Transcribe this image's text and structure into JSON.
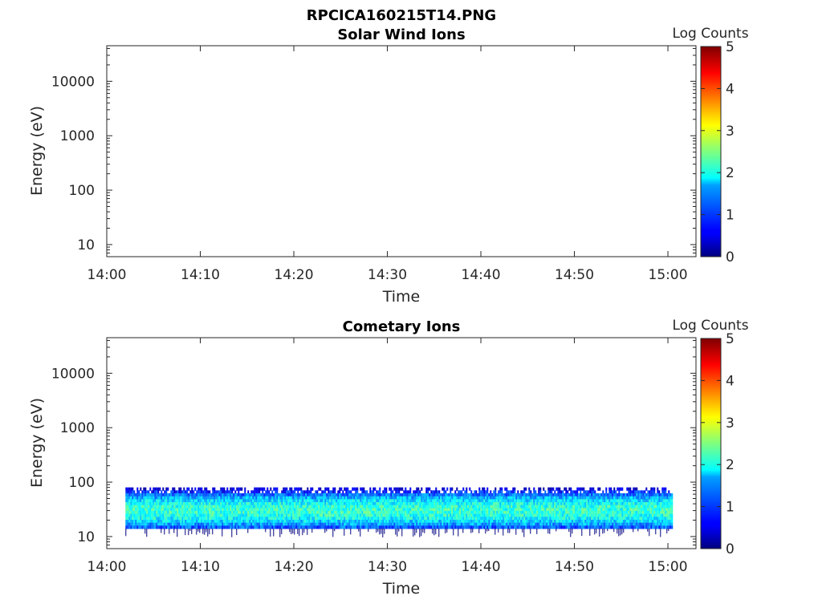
{
  "figure_title": "RPCICA160215T14.PNG",
  "chart_data": [
    {
      "type": "heatmap",
      "title": "Solar Wind Ions",
      "xlabel": "Time",
      "ylabel": "Energy (eV)",
      "x_range": [
        "14:00",
        "15:03"
      ],
      "x_ticks": [
        "14:00",
        "14:10",
        "14:20",
        "14:30",
        "14:40",
        "14:50",
        "15:00"
      ],
      "y_scale": "log",
      "y_range": [
        6,
        45000
      ],
      "y_ticks": [
        10,
        100,
        1000,
        10000
      ],
      "y_tick_labels": [
        "10",
        "100",
        "1000",
        "10000"
      ],
      "colorbar": {
        "label": "Log Counts",
        "range": [
          0,
          5
        ],
        "ticks": [
          "0",
          "1",
          "2",
          "3",
          "4",
          "5"
        ],
        "colormap": "jet"
      },
      "band": null
    },
    {
      "type": "heatmap",
      "title": "Cometary Ions",
      "xlabel": "Time",
      "ylabel": "Energy (eV)",
      "x_range": [
        "14:00",
        "15:03"
      ],
      "x_ticks": [
        "14:00",
        "14:10",
        "14:20",
        "14:30",
        "14:40",
        "14:50",
        "15:00"
      ],
      "y_scale": "log",
      "y_range": [
        6,
        45000
      ],
      "y_ticks": [
        10,
        100,
        1000,
        10000
      ],
      "y_tick_labels": [
        "10",
        "100",
        "1000",
        "10000"
      ],
      "colorbar": {
        "label": "Log Counts",
        "range": [
          0,
          5
        ],
        "ticks": [
          "0",
          "1",
          "2",
          "3",
          "4",
          "5"
        ],
        "colormap": "jet"
      },
      "band": {
        "time_start": "14:02",
        "time_end": "15:00.5",
        "energy_min_eV": 14,
        "energy_max_eV": 80,
        "peak_energy_eV": 30,
        "peak_log_counts": 2.1
      }
    }
  ]
}
